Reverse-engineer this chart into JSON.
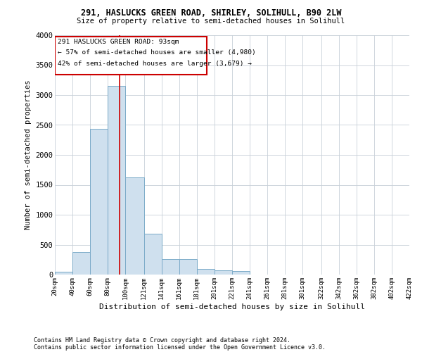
{
  "title1": "291, HASLUCKS GREEN ROAD, SHIRLEY, SOLIHULL, B90 2LW",
  "title2": "Size of property relative to semi-detached houses in Solihull",
  "xlabel": "Distribution of semi-detached houses by size in Solihull",
  "ylabel": "Number of semi-detached properties",
  "footer1": "Contains HM Land Registry data © Crown copyright and database right 2024.",
  "footer2": "Contains public sector information licensed under the Open Government Licence v3.0.",
  "annotation_title": "291 HASLUCKS GREEN ROAD: 93sqm",
  "annotation_line1": "← 57% of semi-detached houses are smaller (4,980)",
  "annotation_line2": "42% of semi-detached houses are larger (3,679) →",
  "property_size": 93,
  "bin_edges": [
    20,
    40,
    60,
    80,
    100,
    121,
    141,
    161,
    181,
    201,
    221,
    241,
    261,
    281,
    301,
    322,
    342,
    362,
    382,
    402,
    422
  ],
  "bar_heights": [
    50,
    380,
    2430,
    3150,
    1620,
    680,
    260,
    260,
    100,
    65,
    55,
    0,
    0,
    0,
    0,
    0,
    0,
    0,
    0,
    0
  ],
  "bar_color": "#cfe0ee",
  "bar_edge_color": "#7aaac8",
  "vline_color": "#cc0000",
  "background_color": "#ffffff",
  "grid_color": "#c8d0d8",
  "ylim": [
    0,
    4000
  ],
  "yticks": [
    0,
    500,
    1000,
    1500,
    2000,
    2500,
    3000,
    3500,
    4000
  ],
  "figsize": [
    6.0,
    5.0
  ],
  "dpi": 100
}
